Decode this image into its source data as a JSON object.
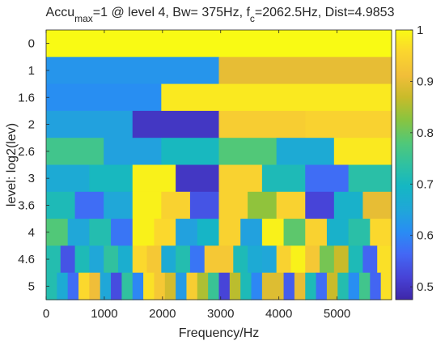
{
  "chart_data": {
    "type": "heatmap",
    "title": {
      "prefix": "Accu",
      "prefix_sub": "max",
      "middle": "=1 @ level 4, Bw= 375Hz, f",
      "middle_sub": "c",
      "suffix": "=2062.5Hz, Dist=4.9853"
    },
    "xlabel": "Frequency/Hz",
    "ylabel": "level: log2(lev)",
    "xlim": [
      0,
      6000
    ],
    "x_ticks": [
      0,
      1000,
      2000,
      3000,
      4000,
      5000
    ],
    "x_tick_labels": [
      "0",
      "1000",
      "2000",
      "3000",
      "4000",
      "5000"
    ],
    "y_tick_labels": [
      "0",
      "1",
      "1.6",
      "2",
      "2.6",
      "3",
      "3.6",
      "4",
      "4.6",
      "5"
    ],
    "row_band_counts": [
      1,
      2,
      3,
      4,
      6,
      8,
      12,
      16,
      24,
      32
    ],
    "rows": [
      [
        1.0
      ],
      [
        0.62,
        0.9
      ],
      [
        0.61,
        0.98,
        0.98
      ],
      [
        0.64,
        0.5,
        0.94,
        0.95
      ],
      [
        0.76,
        0.64,
        0.7,
        0.78,
        0.66,
        0.98
      ],
      [
        0.66,
        0.7,
        0.99,
        0.5,
        0.95,
        0.71,
        0.57,
        0.73
      ],
      [
        0.71,
        0.57,
        0.65,
        0.99,
        0.95,
        0.54,
        0.95,
        0.83,
        0.95,
        0.52,
        0.68,
        0.9
      ],
      [
        0.78,
        0.65,
        0.72,
        0.58,
        0.99,
        0.96,
        0.64,
        0.69,
        0.95,
        0.64,
        0.99,
        0.79,
        0.95,
        0.68,
        0.73,
        0.96
      ],
      [
        0.72,
        0.54,
        0.71,
        0.65,
        0.74,
        0.67,
        0.96,
        0.93,
        0.66,
        0.72,
        0.58,
        0.93,
        0.93,
        0.71,
        0.66,
        0.65,
        0.95,
        0.99,
        0.93,
        0.81,
        0.87,
        0.71,
        0.56,
        0.97
      ],
      [
        0.72,
        0.66,
        0.57,
        0.96,
        0.91,
        0.65,
        0.53,
        0.74,
        0.6,
        0.97,
        0.93,
        0.88,
        0.63,
        0.94,
        0.85,
        0.75,
        0.52,
        0.86,
        0.71,
        0.6,
        0.89,
        0.89,
        0.55,
        0.9,
        0.71,
        0.57,
        0.87,
        0.72,
        0.61,
        0.76,
        0.56,
        0.97
      ]
    ],
    "colorbar": {
      "range": [
        0.475,
        1.0
      ],
      "ticks": [
        0.5,
        0.6,
        0.7,
        0.8,
        0.9,
        1.0
      ],
      "tick_labels": [
        "0.5",
        "0.6",
        "0.7",
        "0.8",
        "0.9",
        "1"
      ],
      "colormap": "parula"
    }
  }
}
